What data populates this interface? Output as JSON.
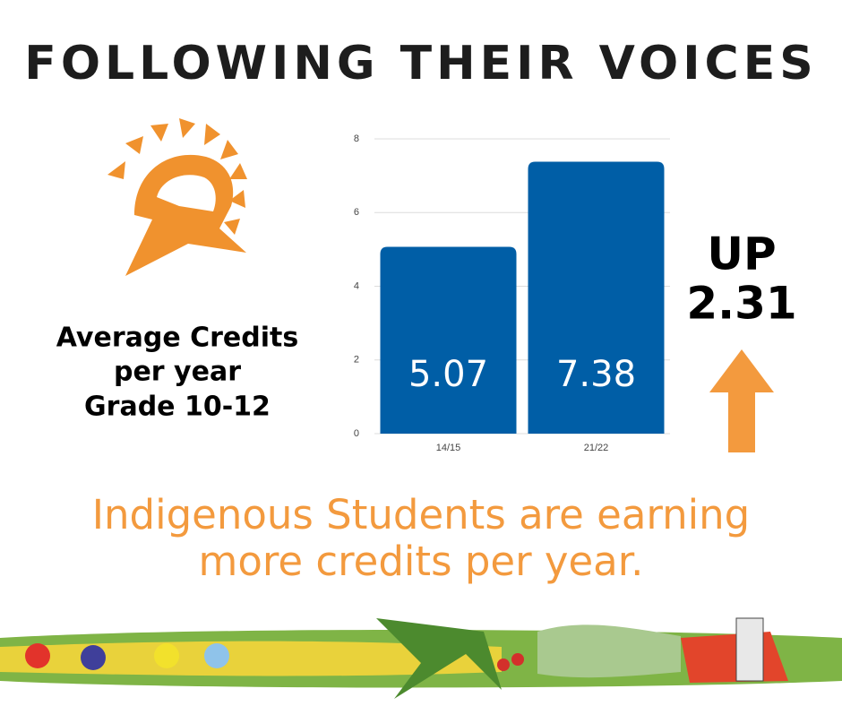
{
  "chart_data": {
    "type": "bar",
    "title": "FOLLOWING THEIR VOICES",
    "subtitle": [
      "Average Credits",
      "per year",
      "Grade 10-12"
    ],
    "categories": [
      "14/15",
      "21/22"
    ],
    "values": [
      5.07,
      7.38
    ],
    "color": "#005ea6",
    "ylim": [
      0,
      8
    ],
    "yticks": [
      0,
      2,
      4,
      6,
      8
    ],
    "grid": true,
    "annotations": [
      "UP",
      "2.31"
    ],
    "footer": [
      "Indigenous Students are earning",
      "more credits per year."
    ]
  }
}
